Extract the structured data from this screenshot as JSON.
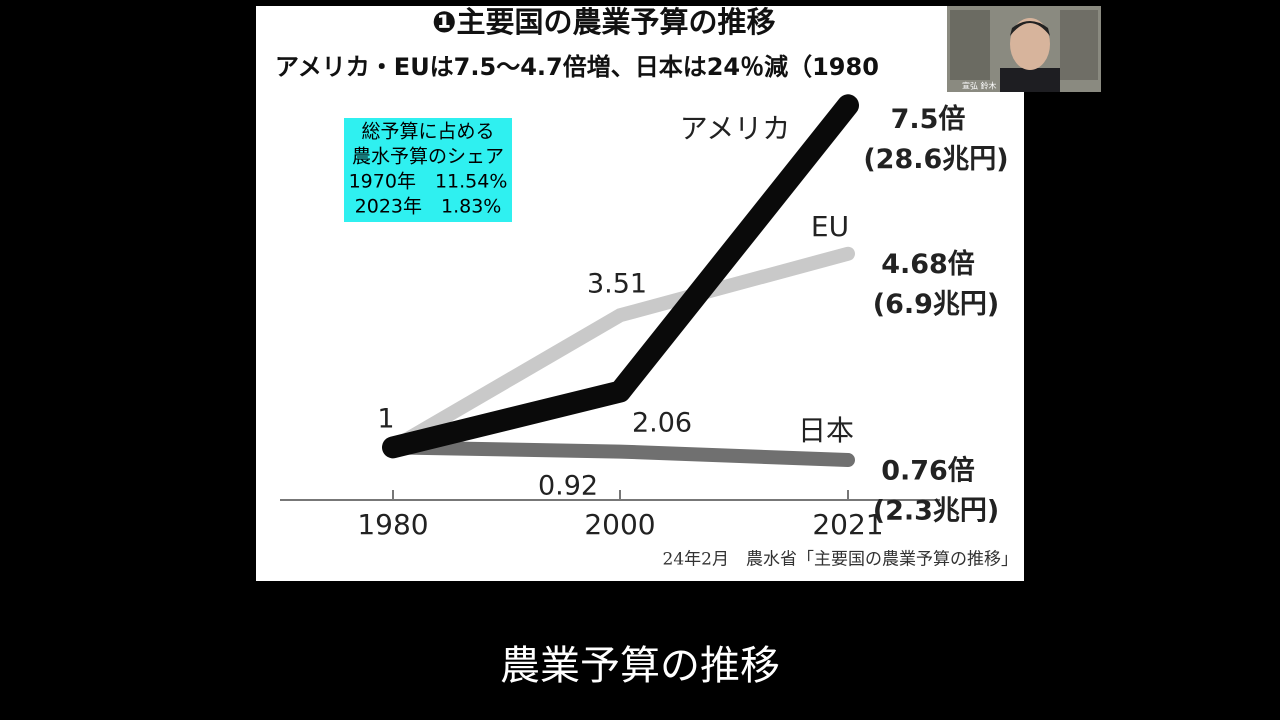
{
  "chart_data": {
    "type": "line",
    "title": "❶主要国の農業予算の推移",
    "subtitle": "アメリカ・EUは7.5〜4.7倍増、日本は24％減（1980",
    "categories": [
      "1980",
      "2000",
      "2021"
    ],
    "series": [
      {
        "name": "アメリカ",
        "color": "#0a0a0a",
        "values": [
          1,
          2.06,
          7.5
        ],
        "value_labels": [
          null,
          null,
          "7.5倍"
        ],
        "amount_label": "(28.6兆円)"
      },
      {
        "name": "EU",
        "color": "#c9c9c9",
        "values": [
          1,
          3.51,
          4.68
        ],
        "value_labels": [
          null,
          null,
          "4.68倍"
        ],
        "amount_label": "(6.9兆円)"
      },
      {
        "name": "日本",
        "color": "#707070",
        "values": [
          1,
          0.92,
          0.76
        ],
        "value_labels": [
          null,
          null,
          "0.76倍"
        ],
        "amount_label": "(2.3兆円)"
      }
    ],
    "ylim": [
      0,
      8
    ],
    "annotation": [
      "総予算に占める",
      "農水予算のシェア",
      "1970年　11.54%",
      "2023年　1.83%"
    ],
    "source": "24年2月　農水省「主要国の農業予算の推移」"
  },
  "webcam": {
    "name": "宣弘 鈴木"
  },
  "caption": "農業予算の推移"
}
